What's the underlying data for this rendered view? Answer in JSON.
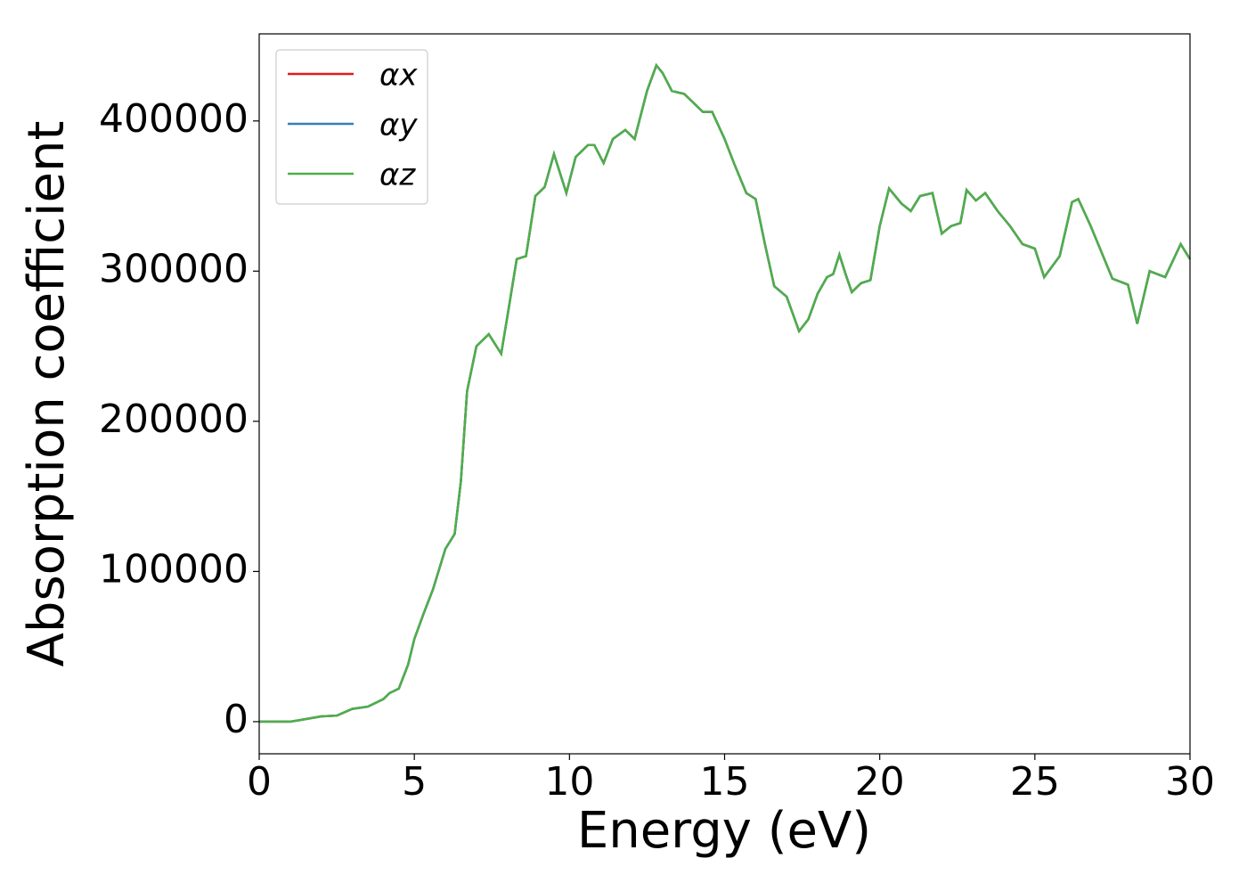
{
  "chart_data": {
    "type": "line",
    "x_label": "Energy (eV)",
    "y_label": "Absorption coefficient",
    "x": [
      0,
      1,
      1.3,
      2,
      2.5,
      3,
      3.5,
      4,
      4.2,
      4.5,
      4.8,
      5,
      5.3,
      5.6,
      6,
      6.3,
      6.5,
      6.7,
      7,
      7.4,
      7.8,
      8,
      8.3,
      8.6,
      8.9,
      9.2,
      9.5,
      9.9,
      10.2,
      10.6,
      10.8,
      11.1,
      11.4,
      11.8,
      12.1,
      12.5,
      12.8,
      13,
      13.3,
      13.7,
      14,
      14.3,
      14.6,
      15,
      15.3,
      15.7,
      16,
      16.3,
      16.6,
      17,
      17.4,
      17.7,
      18,
      18.3,
      18.5,
      18.7,
      18.9,
      19.1,
      19.4,
      19.7,
      20,
      20.3,
      20.7,
      21,
      21.3,
      21.7,
      22,
      22.3,
      22.6,
      22.8,
      23.1,
      23.4,
      23.8,
      24.2,
      24.6,
      25,
      25.3,
      25.8,
      26.2,
      26.4,
      26.8,
      27.2,
      27.5,
      28,
      28.3,
      28.7,
      29.2,
      29.7,
      30
    ],
    "series": [
      {
        "name": "αx",
        "color": "#e41a1c",
        "values": [
          0,
          0,
          1000,
          3500,
          4000,
          8500,
          10000,
          15000,
          19000,
          22000,
          38000,
          55000,
          72000,
          88000,
          115000,
          125000,
          160000,
          220000,
          250000,
          258000,
          245000,
          270000,
          308000,
          310000,
          350000,
          356000,
          378000,
          352000,
          376000,
          384000,
          384000,
          372000,
          388000,
          394000,
          388000,
          420000,
          437000,
          432000,
          420000,
          418000,
          412000,
          406000,
          406000,
          388000,
          372000,
          352000,
          348000,
          318000,
          290000,
          283000,
          260000,
          268000,
          285000,
          296000,
          298000,
          311000,
          298000,
          286000,
          292000,
          294000,
          330000,
          355000,
          345000,
          340000,
          350000,
          352000,
          325000,
          330000,
          332000,
          354000,
          347000,
          352000,
          340000,
          330000,
          318000,
          315000,
          296000,
          310000,
          346000,
          348000,
          330000,
          310000,
          295000,
          291000,
          265000,
          300000,
          296000,
          318000,
          308000
        ]
      },
      {
        "name": "αy",
        "color": "#377eb8",
        "values": [
          0,
          0,
          1000,
          3500,
          4000,
          8500,
          10000,
          15000,
          19000,
          22000,
          38000,
          55000,
          72000,
          88000,
          115000,
          125000,
          160000,
          220000,
          250000,
          258000,
          245000,
          270000,
          308000,
          310000,
          350000,
          356000,
          378000,
          352000,
          376000,
          384000,
          384000,
          372000,
          388000,
          394000,
          388000,
          420000,
          437000,
          432000,
          420000,
          418000,
          412000,
          406000,
          406000,
          388000,
          372000,
          352000,
          348000,
          318000,
          290000,
          283000,
          260000,
          268000,
          285000,
          296000,
          298000,
          311000,
          298000,
          286000,
          292000,
          294000,
          330000,
          355000,
          345000,
          340000,
          350000,
          352000,
          325000,
          330000,
          332000,
          354000,
          347000,
          352000,
          340000,
          330000,
          318000,
          315000,
          296000,
          310000,
          346000,
          348000,
          330000,
          310000,
          295000,
          291000,
          265000,
          300000,
          296000,
          318000,
          308000
        ]
      },
      {
        "name": "αz",
        "color": "#4daf4a",
        "values": [
          0,
          0,
          1000,
          3500,
          4000,
          8500,
          10000,
          15000,
          19000,
          22000,
          38000,
          55000,
          72000,
          88000,
          115000,
          125000,
          160000,
          220000,
          250000,
          258000,
          245000,
          270000,
          308000,
          310000,
          350000,
          356000,
          378000,
          352000,
          376000,
          384000,
          384000,
          372000,
          388000,
          394000,
          388000,
          420000,
          437000,
          432000,
          420000,
          418000,
          412000,
          406000,
          406000,
          388000,
          372000,
          352000,
          348000,
          318000,
          290000,
          283000,
          260000,
          268000,
          285000,
          296000,
          298000,
          311000,
          298000,
          286000,
          292000,
          294000,
          330000,
          355000,
          345000,
          340000,
          350000,
          352000,
          325000,
          330000,
          332000,
          354000,
          347000,
          352000,
          340000,
          330000,
          318000,
          315000,
          296000,
          310000,
          346000,
          348000,
          330000,
          310000,
          295000,
          291000,
          265000,
          300000,
          296000,
          318000,
          308000
        ]
      }
    ],
    "xlim": [
      0,
      30
    ],
    "xticks": [
      0,
      5,
      10,
      15,
      20,
      25,
      30
    ],
    "ylim": [
      -21400,
      458000
    ],
    "yticks": [
      0,
      100000,
      200000,
      300000,
      400000
    ],
    "grid": false,
    "legend": "upper left"
  }
}
